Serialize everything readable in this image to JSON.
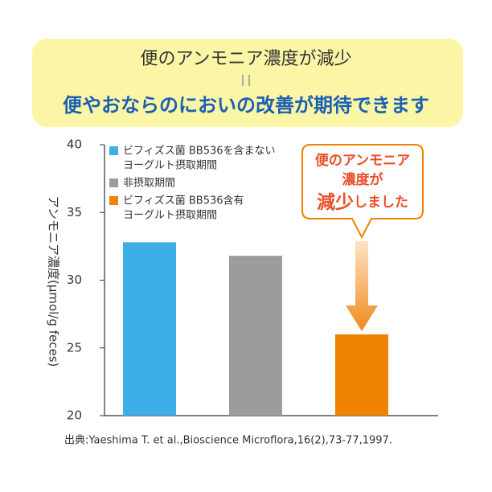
{
  "chart_data": {
    "type": "bar",
    "banner_title": "便のアンモニア濃度が減少",
    "banner_subtitle": "便やおならのにおいの改善が期待できます",
    "ylabel": "アンモニア濃度(μmol/g feces)",
    "categories": [
      null,
      null,
      null
    ],
    "series": [
      {
        "name": [
          "ビフィズス菌 BB536を含まない",
          "ヨーグルト摂取期間"
        ],
        "color": "#3daee7",
        "values": [
          32.8,
          null,
          null
        ]
      },
      {
        "name": [
          "非摂取期間"
        ],
        "color": "#9a9c9e",
        "values": [
          null,
          31.8,
          null
        ]
      },
      {
        "name": [
          "ビフィズス菌 BB536含有",
          "ヨーグルト摂取期間"
        ],
        "color": "#ef8200",
        "values": [
          null,
          null,
          26.0
        ]
      }
    ],
    "ylim": [
      20,
      40
    ],
    "yticks": [
      20,
      25,
      30,
      35,
      40
    ],
    "grid": false,
    "callout": [
      "便のアンモニア",
      "濃度が",
      "減少",
      "しました"
    ],
    "source": "出典:Yaeshima T. et al.,Bioscience Microflora,16(2),73-77,1997."
  }
}
